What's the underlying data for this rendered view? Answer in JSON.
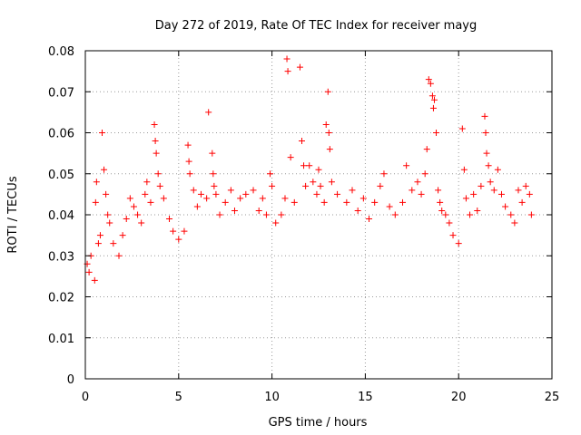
{
  "chart_data": {
    "type": "scatter",
    "title": "Day 272 of 2019, Rate Of TEC Index for receiver mayg",
    "xlabel": "GPS time / hours",
    "ylabel": "ROTI / TECUs",
    "xlim": [
      0,
      25
    ],
    "ylim": [
      0,
      0.08
    ],
    "x_ticks": [
      0,
      5,
      10,
      15,
      20,
      25
    ],
    "x_tick_labels": [
      "0",
      "5",
      "10",
      "15",
      "20",
      "25"
    ],
    "y_ticks": [
      0,
      0.01,
      0.02,
      0.03,
      0.04,
      0.05,
      0.06,
      0.07,
      0.08
    ],
    "y_tick_labels": [
      "0",
      "0.01",
      "0.02",
      "0.03",
      "0.04",
      "0.05",
      "0.06",
      "0.07",
      "0.08"
    ],
    "grid": true,
    "marker": "plus",
    "series": [
      {
        "name": "ROTI",
        "color": "#ff0000",
        "points": [
          [
            0.1,
            0.028
          ],
          [
            0.2,
            0.026
          ],
          [
            0.3,
            0.03
          ],
          [
            0.5,
            0.024
          ],
          [
            0.7,
            0.033
          ],
          [
            0.8,
            0.035
          ],
          [
            0.55,
            0.043
          ],
          [
            0.6,
            0.048
          ],
          [
            0.9,
            0.06
          ],
          [
            1.0,
            0.051
          ],
          [
            1.1,
            0.045
          ],
          [
            1.2,
            0.04
          ],
          [
            1.3,
            0.038
          ],
          [
            1.5,
            0.033
          ],
          [
            1.8,
            0.03
          ],
          [
            2.0,
            0.035
          ],
          [
            2.2,
            0.039
          ],
          [
            2.4,
            0.044
          ],
          [
            2.6,
            0.042
          ],
          [
            2.8,
            0.04
          ],
          [
            3.0,
            0.038
          ],
          [
            3.2,
            0.045
          ],
          [
            3.3,
            0.048
          ],
          [
            3.5,
            0.043
          ],
          [
            3.7,
            0.062
          ],
          [
            3.75,
            0.058
          ],
          [
            3.8,
            0.055
          ],
          [
            3.9,
            0.05
          ],
          [
            4.0,
            0.047
          ],
          [
            4.2,
            0.044
          ],
          [
            4.5,
            0.039
          ],
          [
            4.7,
            0.036
          ],
          [
            5.0,
            0.034
          ],
          [
            5.3,
            0.036
          ],
          [
            5.5,
            0.057
          ],
          [
            5.55,
            0.053
          ],
          [
            5.6,
            0.05
          ],
          [
            5.8,
            0.046
          ],
          [
            6.0,
            0.042
          ],
          [
            6.2,
            0.045
          ],
          [
            6.5,
            0.044
          ],
          [
            6.6,
            0.065
          ],
          [
            6.8,
            0.055
          ],
          [
            6.85,
            0.05
          ],
          [
            6.9,
            0.047
          ],
          [
            7.0,
            0.045
          ],
          [
            7.2,
            0.04
          ],
          [
            7.5,
            0.043
          ],
          [
            7.8,
            0.046
          ],
          [
            8.0,
            0.041
          ],
          [
            8.3,
            0.044
          ],
          [
            8.6,
            0.045
          ],
          [
            9.0,
            0.046
          ],
          [
            9.3,
            0.041
          ],
          [
            9.5,
            0.044
          ],
          [
            9.7,
            0.04
          ],
          [
            9.9,
            0.05
          ],
          [
            10.0,
            0.047
          ],
          [
            10.2,
            0.038
          ],
          [
            10.5,
            0.04
          ],
          [
            10.7,
            0.044
          ],
          [
            10.8,
            0.078
          ],
          [
            10.85,
            0.075
          ],
          [
            11.0,
            0.054
          ],
          [
            11.2,
            0.043
          ],
          [
            11.5,
            0.076
          ],
          [
            11.6,
            0.058
          ],
          [
            11.7,
            0.052
          ],
          [
            11.8,
            0.047
          ],
          [
            12.0,
            0.052
          ],
          [
            12.2,
            0.048
          ],
          [
            12.4,
            0.045
          ],
          [
            12.5,
            0.051
          ],
          [
            12.6,
            0.047
          ],
          [
            12.8,
            0.043
          ],
          [
            12.9,
            0.062
          ],
          [
            13.0,
            0.07
          ],
          [
            13.05,
            0.06
          ],
          [
            13.1,
            0.056
          ],
          [
            13.2,
            0.048
          ],
          [
            13.5,
            0.045
          ],
          [
            14.0,
            0.043
          ],
          [
            14.3,
            0.046
          ],
          [
            14.6,
            0.041
          ],
          [
            14.9,
            0.044
          ],
          [
            15.2,
            0.039
          ],
          [
            15.5,
            0.043
          ],
          [
            15.8,
            0.047
          ],
          [
            16.0,
            0.05
          ],
          [
            16.3,
            0.042
          ],
          [
            16.6,
            0.04
          ],
          [
            17.0,
            0.043
          ],
          [
            17.2,
            0.052
          ],
          [
            17.5,
            0.046
          ],
          [
            17.8,
            0.048
          ],
          [
            18.0,
            0.045
          ],
          [
            18.2,
            0.05
          ],
          [
            18.3,
            0.056
          ],
          [
            18.4,
            0.073
          ],
          [
            18.5,
            0.072
          ],
          [
            18.6,
            0.069
          ],
          [
            18.65,
            0.066
          ],
          [
            18.7,
            0.068
          ],
          [
            18.8,
            0.06
          ],
          [
            18.9,
            0.046
          ],
          [
            19.0,
            0.043
          ],
          [
            19.1,
            0.041
          ],
          [
            19.3,
            0.04
          ],
          [
            19.5,
            0.038
          ],
          [
            19.7,
            0.035
          ],
          [
            20.0,
            0.033
          ],
          [
            20.2,
            0.061
          ],
          [
            20.3,
            0.051
          ],
          [
            20.4,
            0.044
          ],
          [
            20.6,
            0.04
          ],
          [
            20.8,
            0.045
          ],
          [
            21.0,
            0.041
          ],
          [
            21.2,
            0.047
          ],
          [
            21.4,
            0.064
          ],
          [
            21.45,
            0.06
          ],
          [
            21.5,
            0.055
          ],
          [
            21.6,
            0.052
          ],
          [
            21.7,
            0.048
          ],
          [
            21.9,
            0.046
          ],
          [
            22.1,
            0.051
          ],
          [
            22.3,
            0.045
          ],
          [
            22.5,
            0.042
          ],
          [
            22.8,
            0.04
          ],
          [
            23.0,
            0.038
          ],
          [
            23.2,
            0.046
          ],
          [
            23.4,
            0.043
          ],
          [
            23.6,
            0.047
          ],
          [
            23.8,
            0.045
          ],
          [
            23.9,
            0.04
          ]
        ]
      }
    ]
  }
}
